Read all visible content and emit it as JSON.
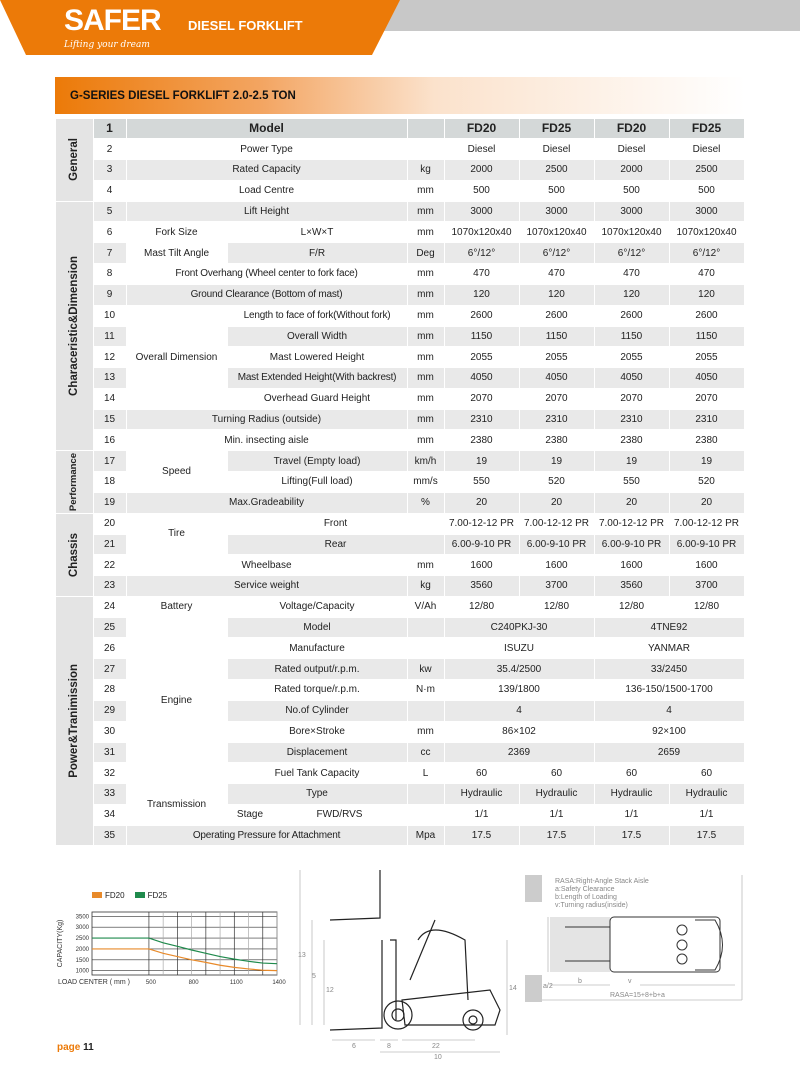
{
  "header": {
    "brand": "SAFER",
    "slogan": "Lifting your dream",
    "title": "DIESEL FORKLIFT",
    "brand_color": "#ec7a08"
  },
  "section_title": "G-SERIES DIESEL FORKLIFT 2.0-2.5 TON",
  "groups": [
    {
      "label": "General",
      "rows": 4
    },
    {
      "label": "Characeristic&Dimension",
      "rows": 12
    },
    {
      "label": "Performance",
      "rows": 3
    },
    {
      "label": "Chassis",
      "rows": 4
    },
    {
      "label": "Power&Tranimission",
      "rows": 12
    }
  ],
  "rows": [
    {
      "no": "1",
      "label": "Model",
      "unit": "",
      "values": [
        "FD20",
        "FD25",
        "FD20",
        "FD25"
      ]
    },
    {
      "no": "2",
      "label": "Power Type",
      "unit": "",
      "values": [
        "Diesel",
        "Diesel",
        "Diesel",
        "Diesel"
      ]
    },
    {
      "no": "3",
      "label": "Rated Capacity",
      "unit": "kg",
      "values": [
        "2000",
        "2500",
        "2000",
        "2500"
      ]
    },
    {
      "no": "4",
      "label": "Load Centre",
      "unit": "mm",
      "values": [
        "500",
        "500",
        "500",
        "500"
      ]
    },
    {
      "no": "5",
      "label": "Lift Height",
      "unit": "mm",
      "values": [
        "3000",
        "3000",
        "3000",
        "3000"
      ]
    },
    {
      "no": "6",
      "sub": "Fork Size",
      "sub_span": 1,
      "label": "L×W×T",
      "unit": "mm",
      "values": [
        "1070x120x40",
        "1070x120x40",
        "1070x120x40",
        "1070x120x40"
      ]
    },
    {
      "no": "7",
      "sub": "Mast Tilt Angle",
      "sub_span": 1,
      "label": "F/R",
      "unit": "Deg",
      "values": [
        "6°/12°",
        "6°/12°",
        "6°/12°",
        "6°/12°"
      ]
    },
    {
      "no": "8",
      "label": "Front Overhang (Wheel center to fork face)",
      "unit": "mm",
      "values": [
        "470",
        "470",
        "470",
        "470"
      ]
    },
    {
      "no": "9",
      "label": "Ground Clearance (Bottom of mast)",
      "unit": "mm",
      "values": [
        "120",
        "120",
        "120",
        "120"
      ]
    },
    {
      "no": "10",
      "sub": "Overall Dimension",
      "sub_span": 5,
      "label": "Length to face of fork(Without fork)",
      "unit": "mm",
      "values": [
        "2600",
        "2600",
        "2600",
        "2600"
      ]
    },
    {
      "no": "11",
      "in_sub": true,
      "label": "Overall Width",
      "unit": "mm",
      "values": [
        "1150",
        "1150",
        "1150",
        "1150"
      ]
    },
    {
      "no": "12",
      "in_sub": true,
      "label": "Mast Lowered Height",
      "unit": "mm",
      "values": [
        "2055",
        "2055",
        "2055",
        "2055"
      ]
    },
    {
      "no": "13",
      "in_sub": true,
      "label": "Mast Extended Height(With backrest)",
      "unit": "mm",
      "values": [
        "4050",
        "4050",
        "4050",
        "4050"
      ]
    },
    {
      "no": "14",
      "in_sub": true,
      "label": "Overhead Guard Height",
      "unit": "mm",
      "values": [
        "2070",
        "2070",
        "2070",
        "2070"
      ]
    },
    {
      "no": "15",
      "label": "Turning Radius (outside)",
      "unit": "mm",
      "values": [
        "2310",
        "2310",
        "2310",
        "2310"
      ]
    },
    {
      "no": "16",
      "label": "Min. insecting aisle",
      "unit": "mm",
      "values": [
        "2380",
        "2380",
        "2380",
        "2380"
      ]
    },
    {
      "no": "17",
      "sub": "Speed",
      "sub_span": 2,
      "label": "Travel (Empty load)",
      "unit": "km/h",
      "values": [
        "19",
        "19",
        "19",
        "19"
      ]
    },
    {
      "no": "18",
      "in_sub": true,
      "label": "Lifting(Full load)",
      "unit": "mm/s",
      "values": [
        "550",
        "520",
        "550",
        "520"
      ]
    },
    {
      "no": "19",
      "label": "Max.Gradeability",
      "unit": "%",
      "values": [
        "20",
        "20",
        "20",
        "20"
      ]
    },
    {
      "no": "20",
      "sub": "Tire",
      "sub_span": 2,
      "label": "Front",
      "no_unit": true,
      "values": [
        "7.00-12-12 PR",
        "7.00-12-12 PR",
        "7.00-12-12 PR",
        "7.00-12-12 PR"
      ]
    },
    {
      "no": "21",
      "in_sub": true,
      "label": "Rear",
      "no_unit": true,
      "values": [
        "6.00-9-10 PR",
        "6.00-9-10 PR",
        "6.00-9-10 PR",
        "6.00-9-10 PR"
      ]
    },
    {
      "no": "22",
      "label": "Wheelbase",
      "unit": "mm",
      "values": [
        "1600",
        "1600",
        "1600",
        "1600"
      ]
    },
    {
      "no": "23",
      "label": "Service weight",
      "unit": "kg",
      "values": [
        "3560",
        "3700",
        "3560",
        "3700"
      ]
    },
    {
      "no": "24",
      "sub": "Battery",
      "sub_span": 1,
      "label": "Voltage/Capacity",
      "unit": "V/Ah",
      "values": [
        "12/80",
        "12/80",
        "12/80",
        "12/80"
      ]
    },
    {
      "no": "25",
      "sub": "Engine",
      "sub_span": 8,
      "label": "Model",
      "unit": "",
      "merged": true,
      "values": [
        "C240PKJ-30",
        "4TNE92"
      ]
    },
    {
      "no": "26",
      "in_sub": true,
      "label": "Manufacture",
      "unit": "",
      "merged": true,
      "values": [
        "ISUZU",
        "YANMAR"
      ]
    },
    {
      "no": "27",
      "in_sub": true,
      "label": "Rated output/r.p.m.",
      "unit": "kw",
      "merged": true,
      "values": [
        "35.4/2500",
        "33/2450"
      ]
    },
    {
      "no": "28",
      "in_sub": true,
      "label": "Rated torque/r.p.m.",
      "unit": "N·m",
      "merged": true,
      "values": [
        "139/1800",
        "136-150/1500-1700"
      ]
    },
    {
      "no": "29",
      "in_sub": true,
      "label": "No.of Cylinder",
      "unit": "",
      "merged": true,
      "values": [
        "4",
        "4"
      ]
    },
    {
      "no": "30",
      "in_sub": true,
      "label": "Bore×Stroke",
      "unit": "mm",
      "merged": true,
      "values": [
        "86×102",
        "92×100"
      ]
    },
    {
      "no": "31",
      "in_sub": true,
      "label": "Displacement",
      "unit": "cc",
      "merged": true,
      "values": [
        "2369",
        "2659"
      ]
    },
    {
      "no": "32",
      "in_sub": true,
      "label": "Fuel Tank Capacity",
      "unit": "L",
      "values": [
        "60",
        "60",
        "60",
        "60"
      ]
    },
    {
      "no": "33",
      "sub": "Transmission",
      "sub_span": 2,
      "label": "Type",
      "unit": "",
      "values": [
        "Hydraulic",
        "Hydraulic",
        "Hydraulic",
        "Hydraulic"
      ]
    },
    {
      "no": "34",
      "in_sub": true,
      "label_parts": [
        "Stage",
        "FWD/RVS"
      ],
      "unit": "",
      "values": [
        "1/1",
        "1/1",
        "1/1",
        "1/1"
      ]
    },
    {
      "no": "35",
      "label": "Operating Pressure for Attachment",
      "unit": "Mpa",
      "values": [
        "17.5",
        "17.5",
        "17.5",
        "17.5"
      ]
    }
  ],
  "chart_data": {
    "type": "line",
    "title": "",
    "xlabel": "LOAD CENTER ( mm )",
    "ylabel": "CAPACITY(Kg)",
    "xlim": [
      100,
      1400
    ],
    "ylim": [
      800,
      3700
    ],
    "xticks": [
      500,
      800,
      1100,
      1400
    ],
    "yticks": [
      1000,
      1500,
      2000,
      2500,
      3000,
      3500
    ],
    "grid": true,
    "legend": "top-left",
    "series": [
      {
        "name": "FD20",
        "color": "#e88a2a",
        "x": [
          100,
          500,
          600,
          700,
          800,
          900,
          1000,
          1100,
          1200,
          1300,
          1400
        ],
        "y": [
          2000,
          2000,
          1800,
          1650,
          1500,
          1380,
          1250,
          1150,
          1080,
          1020,
          1000
        ]
      },
      {
        "name": "FD25",
        "color": "#1f8a4c",
        "x": [
          100,
          500,
          600,
          700,
          800,
          900,
          1000,
          1100,
          1200,
          1300,
          1400
        ],
        "y": [
          2500,
          2500,
          2280,
          2120,
          1950,
          1800,
          1650,
          1530,
          1430,
          1350,
          1320
        ]
      }
    ]
  },
  "side_view": {
    "dims": [
      "13",
      "5",
      "12",
      "14",
      "6",
      "8",
      "22",
      "10"
    ]
  },
  "top_view": {
    "legend": [
      "RASA:Right-Angle Stack Aisle",
      "a:Safety Clearance",
      "b:Length of Loading",
      "v:Turning radius(inside)"
    ],
    "formula": "RASA=15+8+b+a",
    "labels": [
      "a/2",
      "b",
      "v"
    ]
  },
  "footer": {
    "page_word": "page",
    "page_number": "11"
  }
}
